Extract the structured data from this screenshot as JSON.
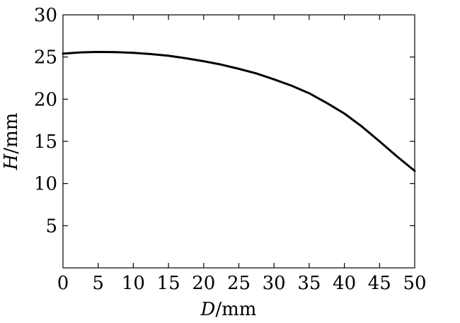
{
  "chart_data": {
    "type": "line",
    "title": "",
    "xlabel": {
      "symbol": "D",
      "unit": "/mm"
    },
    "ylabel": {
      "symbol": "H",
      "unit": "/mm"
    },
    "xlim": [
      0,
      50
    ],
    "ylim": [
      0,
      30
    ],
    "xticks": [
      0,
      5,
      10,
      15,
      20,
      25,
      30,
      35,
      40,
      45,
      50
    ],
    "xtick_labels": [
      "0",
      "5",
      "10",
      "15",
      "20",
      "25",
      "30",
      "35",
      "40",
      "45",
      "50"
    ],
    "yticks": [
      5,
      10,
      15,
      20,
      25,
      30
    ],
    "ytick_labels": [
      "5",
      "10",
      "15",
      "20",
      "25",
      "30"
    ],
    "grid": false,
    "legend": "none",
    "line_color": "#000000",
    "series": [
      {
        "x": [
          0,
          2.5,
          5,
          7.5,
          10,
          12.5,
          15,
          17.5,
          20,
          22.5,
          25,
          27.5,
          30,
          32.5,
          35,
          37.5,
          40,
          42.5,
          45,
          47.5,
          50
        ],
        "y": [
          25.4,
          25.55,
          25.6,
          25.58,
          25.5,
          25.35,
          25.15,
          24.85,
          24.5,
          24.1,
          23.6,
          23.05,
          22.35,
          21.6,
          20.7,
          19.55,
          18.3,
          16.75,
          15.0,
          13.2,
          11.5
        ]
      }
    ]
  }
}
